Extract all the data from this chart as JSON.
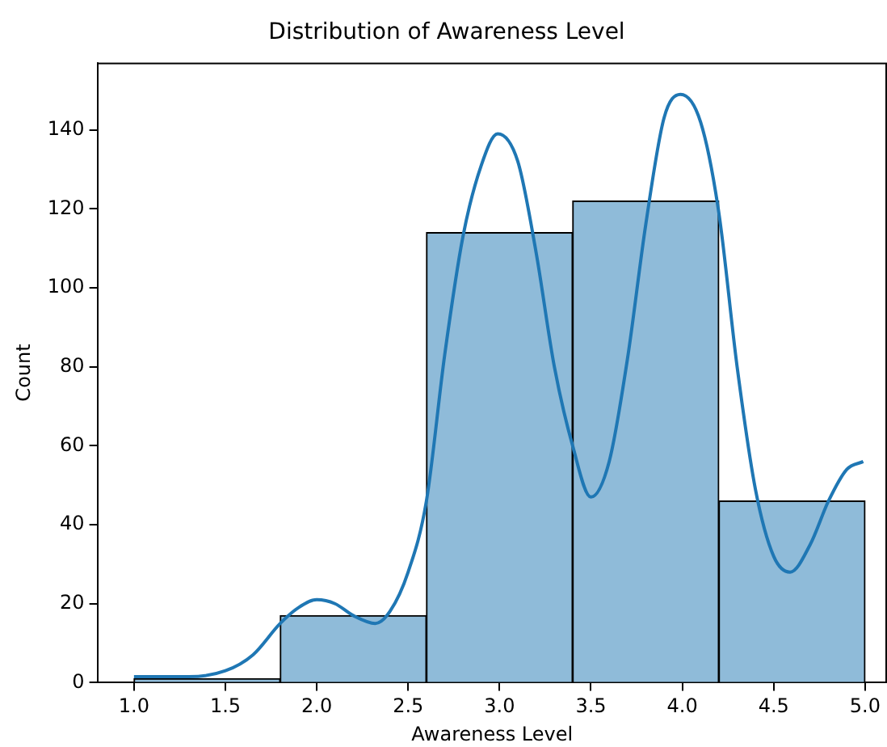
{
  "chart_data": {
    "type": "histogram",
    "title": "Distribution of Awareness Level",
    "xlabel": "Awareness Level",
    "ylabel": "Count",
    "bins": [
      1.0,
      1.8,
      2.6,
      3.4,
      4.2,
      5.0
    ],
    "values": [
      1,
      17,
      114,
      122,
      46
    ],
    "color": "#8fbbd9",
    "series": [
      {
        "type": "line",
        "color": "#1f77b4",
        "x": [
          1.0,
          1.3,
          1.5,
          1.65,
          1.8,
          1.9,
          2.0,
          2.1,
          2.2,
          2.32,
          2.4,
          2.5,
          2.6,
          2.7,
          2.8,
          2.9,
          2.99,
          3.1,
          3.2,
          3.3,
          3.4,
          3.5,
          3.6,
          3.7,
          3.8,
          3.9,
          3.99,
          4.1,
          4.2,
          4.3,
          4.4,
          4.5,
          4.59,
          4.7,
          4.8,
          4.9,
          4.99
        ],
        "values": [
          1.5,
          1.5,
          3,
          7,
          15,
          19,
          21,
          20,
          17,
          15,
          18,
          28,
          46,
          83,
          113,
          131,
          139,
          132,
          109,
          80,
          60,
          47,
          56,
          82,
          116,
          143,
          149,
          142,
          119,
          80,
          49,
          32,
          28,
          35,
          46,
          54,
          56
        ]
      }
    ],
    "xlim": [
      0.8,
      5.12
    ],
    "xticks": [
      {
        "value": 1.0,
        "label": "1.0"
      },
      {
        "value": 1.5,
        "label": "1.5"
      },
      {
        "value": 2.0,
        "label": "2.0"
      },
      {
        "value": 2.5,
        "label": "2.5"
      },
      {
        "value": 3.0,
        "label": "3.0"
      },
      {
        "value": 3.5,
        "label": "3.5"
      },
      {
        "value": 4.0,
        "label": "4.0"
      },
      {
        "value": 4.5,
        "label": "4.5"
      },
      {
        "value": 5.0,
        "label": "5.0"
      }
    ],
    "ylim": [
      0,
      157
    ],
    "yticks": [
      0,
      20,
      40,
      60,
      80,
      100,
      120,
      140
    ],
    "grid": false,
    "legend": false
  }
}
